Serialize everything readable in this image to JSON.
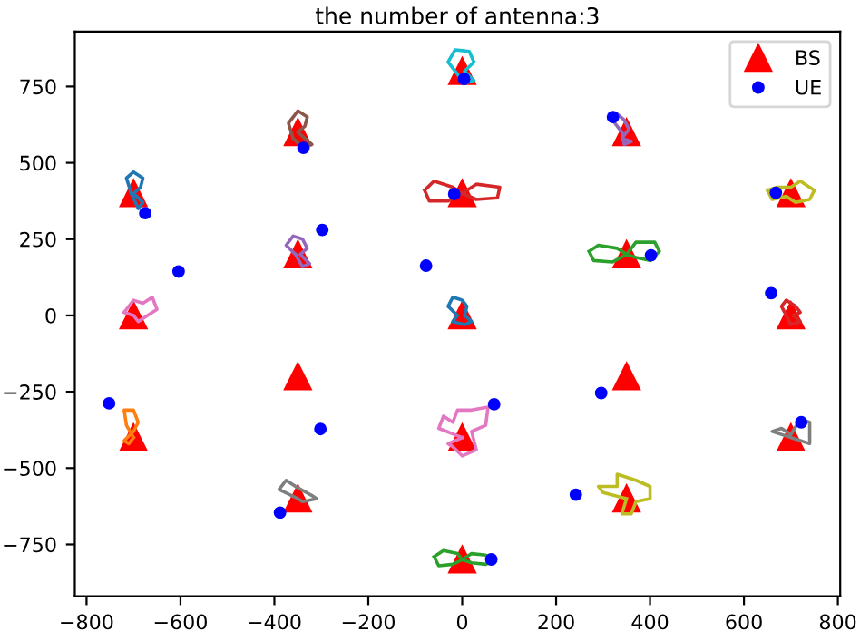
{
  "chart_data": {
    "type": "scatter",
    "title": "the number of antenna:3",
    "xlim": [
      -825,
      805
    ],
    "ylim": [
      -920,
      930
    ],
    "xticks": [
      {
        "value": -800,
        "label": "−800"
      },
      {
        "value": -600,
        "label": "−600"
      },
      {
        "value": -400,
        "label": "−400"
      },
      {
        "value": -200,
        "label": "−200"
      },
      0,
      200,
      400,
      600,
      800
    ],
    "yticks": [
      {
        "value": -750,
        "label": "−750"
      },
      {
        "value": -500,
        "label": "−500"
      },
      {
        "value": -250,
        "label": "−250"
      },
      0,
      250,
      500,
      750
    ],
    "grid": false,
    "legend": "top right",
    "series": [
      {
        "name": "BS",
        "color": "#ff0000",
        "marker": "triangle",
        "x": [
          0,
          -350,
          350,
          -700,
          0,
          700,
          -350,
          350,
          -700,
          0,
          700,
          -350,
          350,
          -700,
          0,
          700,
          -350,
          350,
          0
        ],
        "values": [
          800,
          600,
          600,
          400,
          400,
          400,
          200,
          200,
          0,
          0,
          0,
          -200,
          -200,
          -400,
          -400,
          -400,
          -600,
          -600,
          -800
        ]
      },
      {
        "name": "UE",
        "color": "#0000ff",
        "marker": "circle",
        "x": [
          4,
          -338,
          321,
          -675,
          -17,
          668,
          -298,
          -604,
          -77,
          402,
          658,
          -752,
          68,
          296,
          -302,
          722,
          -388,
          242,
          62
        ],
        "values": [
          775,
          549,
          650,
          335,
          398,
          402,
          280,
          144,
          163,
          197,
          73,
          -288,
          -291,
          -254,
          -372,
          -350,
          -646,
          -587,
          -799
        ]
      }
    ]
  }
}
